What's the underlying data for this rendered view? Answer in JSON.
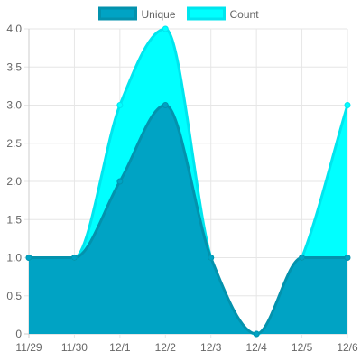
{
  "chart_data": {
    "type": "area",
    "categories": [
      "11/29",
      "11/30",
      "12/1",
      "12/2",
      "12/3",
      "12/4",
      "12/5",
      "12/6"
    ],
    "series": [
      {
        "name": "Unique",
        "values": [
          1,
          1,
          2,
          3,
          1,
          0,
          1,
          1
        ],
        "color": "#00a3c4",
        "stroke": "#0392ad"
      },
      {
        "name": "Count",
        "values": [
          1,
          1,
          3,
          4,
          1,
          0,
          1,
          3
        ],
        "color": "#00ffff",
        "stroke": "#00e5ee"
      }
    ],
    "ylim": [
      0,
      4
    ],
    "y_ticks": [
      "0",
      "0.5",
      "1.0",
      "1.5",
      "2.0",
      "2.5",
      "3.0",
      "3.5",
      "4.0"
    ],
    "legend_position": "top",
    "grid": true,
    "title": "",
    "xlabel": "",
    "ylabel": ""
  }
}
